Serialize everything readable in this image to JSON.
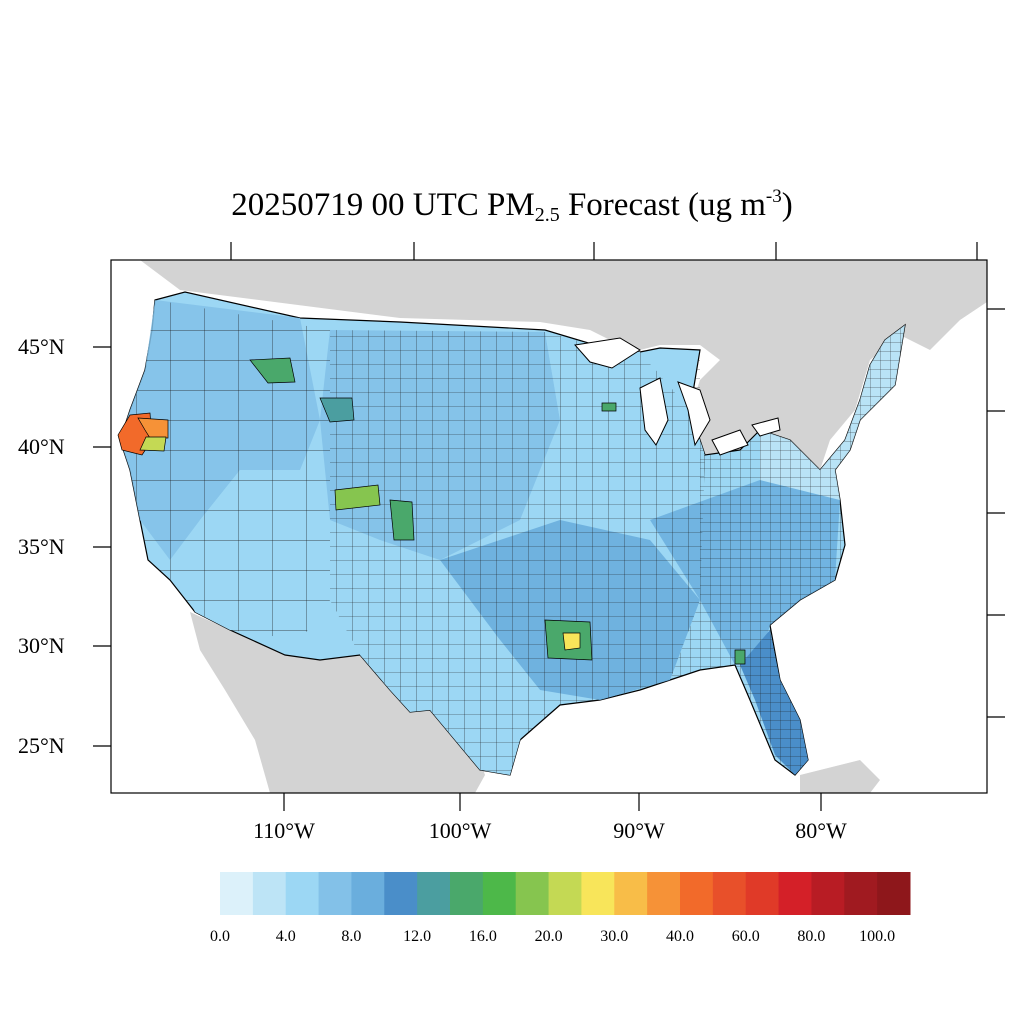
{
  "title": {
    "main": "20250719 00 UTC PM",
    "sub": "2.5",
    "after": " Forecast (ug m",
    "sup": "-3",
    "end": ")"
  },
  "axes": {
    "lat_labels": [
      "45°N",
      "40°N",
      "35°N",
      "30°N",
      "25°N"
    ],
    "lon_labels": [
      "110°W",
      "100°W",
      "90°W",
      "80°W"
    ]
  },
  "colorbar": {
    "colors": [
      "#dcf1fa",
      "#bde4f6",
      "#9cd7f4",
      "#83c1e8",
      "#6aaedd",
      "#4a8ec9",
      "#4b9ea0",
      "#4aa86b",
      "#4db849",
      "#86c54f",
      "#c4d954",
      "#f8e55a",
      "#f8bd48",
      "#f69237",
      "#f26a2a",
      "#e8502a",
      "#e03a28",
      "#d42028",
      "#b81c24",
      "#a01a20",
      "#8e171b"
    ],
    "labels": [
      "0.0",
      "4.0",
      "8.0",
      "12.0",
      "16.0",
      "20.0",
      "30.0",
      "40.0",
      "60.0",
      "80.0",
      "100.0"
    ]
  },
  "colors": {
    "land_outside": "#d3d3d3",
    "water": "#ffffff",
    "county_low": "#bde4f6",
    "county_mid": "#83c1e8",
    "county_high": "#4a8ec9",
    "border": "#000000"
  }
}
